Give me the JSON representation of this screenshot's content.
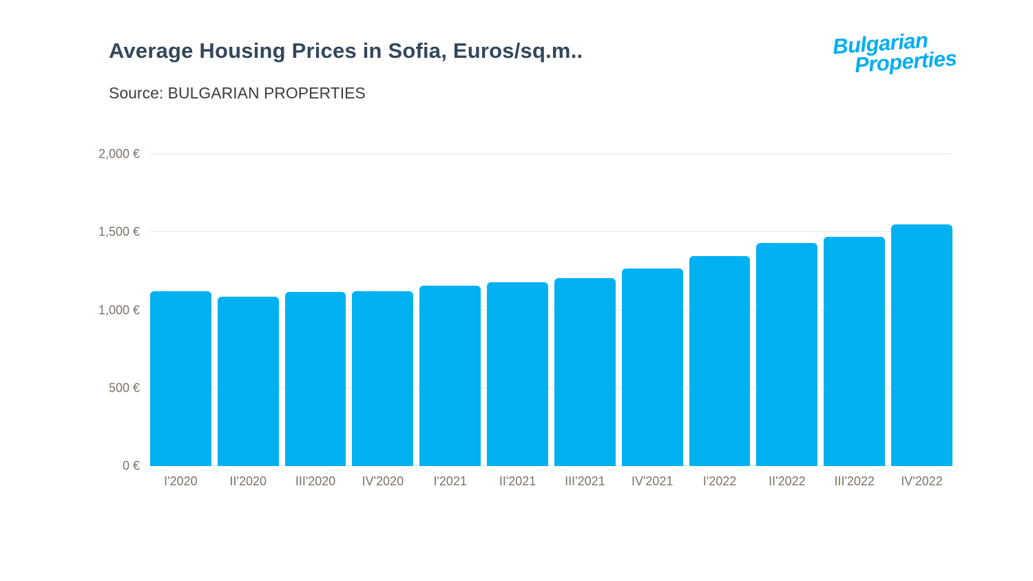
{
  "page": {
    "title": "Average Housing Prices in Sofia, Euros/sq.m..",
    "source": "Source: BULGARIAN PROPERTIES",
    "logo_line1": "Bulgarian",
    "logo_line2": "Properties"
  },
  "colors": {
    "bar": "#00b1f1",
    "title": "#33475b",
    "axis_label": "#7d7164",
    "logo": "#00aef0",
    "gridline": "#e7e7e7"
  },
  "chart_data": {
    "type": "bar",
    "title": "Average Housing Prices in Sofia, Euros/sq.m..",
    "subtitle": "Source: BULGARIAN PROPERTIES",
    "categories": [
      "I'2020",
      "II'2020",
      "III'2020",
      "IV'2020",
      "I'2021",
      "II'2021",
      "III'2021",
      "IV'2021",
      "I'2022",
      "II'2022",
      "III'2022",
      "IV'2022"
    ],
    "values": [
      1120,
      1085,
      1115,
      1120,
      1155,
      1180,
      1205,
      1265,
      1345,
      1430,
      1470,
      1550
    ],
    "xlabel": "",
    "ylabel": "",
    "ylim": [
      0,
      2000
    ],
    "yticks": [
      {
        "value": 0,
        "label": "0 €"
      },
      {
        "value": 500,
        "label": "500 €"
      },
      {
        "value": 1000,
        "label": "1,000 €"
      },
      {
        "value": 1500,
        "label": "1,500 €"
      },
      {
        "value": 2000,
        "label": "2,000 €"
      }
    ],
    "grid": true,
    "legend": false
  }
}
